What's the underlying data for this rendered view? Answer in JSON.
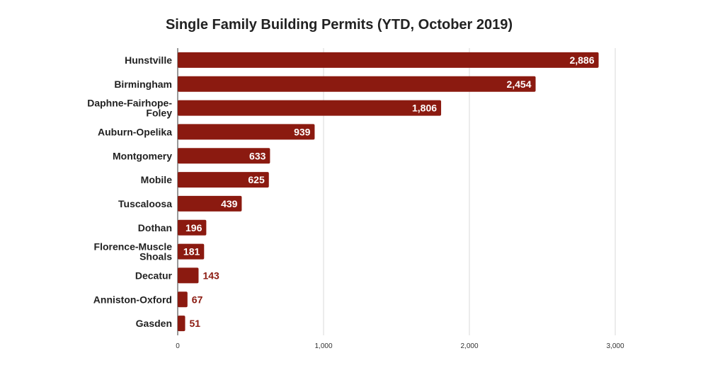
{
  "chart_data": {
    "type": "bar",
    "orientation": "horizontal",
    "title": "Single Family Building Permits (YTD, October 2019)",
    "categories": [
      "Hunstville",
      "Birmingham",
      "Daphne-Fairhope-Foley",
      "Auburn-Opelika",
      "Montgomery",
      "Mobile",
      "Tuscaloosa",
      "Dothan",
      "Florence-Muscle Shoals",
      "Decatur",
      "Anniston-Oxford",
      "Gasden"
    ],
    "category_lines": [
      [
        "Hunstville"
      ],
      [
        "Birmingham"
      ],
      [
        "Daphne-Fairhope-",
        "Foley"
      ],
      [
        "Auburn-Opelika"
      ],
      [
        "Montgomery"
      ],
      [
        "Mobile"
      ],
      [
        "Tuscaloosa"
      ],
      [
        "Dothan"
      ],
      [
        "Florence-Muscle",
        "Shoals"
      ],
      [
        "Decatur"
      ],
      [
        "Anniston-Oxford"
      ],
      [
        "Gasden"
      ]
    ],
    "values": [
      2886,
      2454,
      1806,
      939,
      633,
      625,
      439,
      196,
      181,
      143,
      67,
      51
    ],
    "value_labels": [
      "2,886",
      "2,454",
      "1,806",
      "939",
      "633",
      "625",
      "439",
      "196",
      "181",
      "143",
      "67",
      "51"
    ],
    "xlim": [
      0,
      3000
    ],
    "xticks": [
      0,
      1000,
      2000,
      3000
    ],
    "xtick_labels": [
      "0",
      "1,000",
      "2,000",
      "3,000"
    ],
    "xlabel": "",
    "ylabel": "",
    "grid": true,
    "legend": "none",
    "colors": {
      "bar": "#8b1a10",
      "label_inside": "#ffffff",
      "label_outside": "#8b1a10",
      "grid": "#d9d9d9",
      "axis": "#333333"
    }
  }
}
